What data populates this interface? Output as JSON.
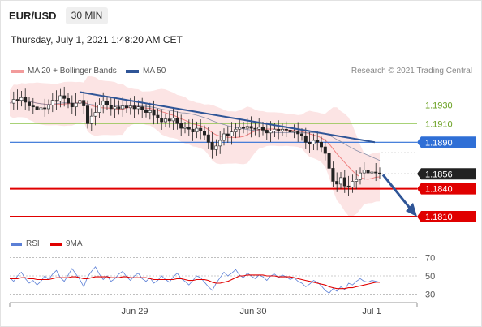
{
  "header": {
    "symbol": "EUR/USD",
    "timeframe": "30 MIN",
    "datetime": "Thursday, July 1, 2021 1:48:20 AM CET"
  },
  "legend": {
    "ma20_label": "MA 20 + Bollinger Bands",
    "ma50_label": "MA 50",
    "credit": "Research © 2021 Trading Central",
    "rsi_label": "RSI",
    "rsi_ma_label": "9MA"
  },
  "colors": {
    "ma20": "#f08080",
    "ma50": "#2f5597",
    "resistance": "#8bc34a",
    "pivot": "#2f6fd6",
    "support": "#e00000",
    "price_tag": "#222222",
    "trend_arrow": "#2f5597",
    "rsi": "#5b7fd6",
    "rsi_ma": "#e00000"
  },
  "chart_data": [
    {
      "type": "candlestick",
      "title": "EUR/USD 30 MIN",
      "x_labels": [
        "Jun 29",
        "Jun 30",
        "Jul 1"
      ],
      "ylim": [
        1.179,
        1.196
      ],
      "price_path": [
        1.1932,
        1.1936,
        1.1935,
        1.1938,
        1.1933,
        1.1929,
        1.1928,
        1.1925,
        1.1927,
        1.1926,
        1.193,
        1.1935,
        1.1934,
        1.194,
        1.1937,
        1.1932,
        1.1928,
        1.1932,
        1.1935,
        1.1929,
        1.191,
        1.1918,
        1.1922,
        1.193,
        1.1934,
        1.193,
        1.1926,
        1.1928,
        1.1926,
        1.1929,
        1.1927,
        1.1929,
        1.1926,
        1.1928,
        1.1925,
        1.1922,
        1.1924,
        1.1919,
        1.1916,
        1.1912,
        1.1915,
        1.1913,
        1.1916,
        1.191,
        1.1905,
        1.1906,
        1.1904,
        1.1901,
        1.1905,
        1.1902,
        1.1898,
        1.189,
        1.1882,
        1.1886,
        1.1892,
        1.1899,
        1.1897,
        1.1901,
        1.1904,
        1.1906,
        1.1905,
        1.1907,
        1.1905,
        1.1904,
        1.1906,
        1.1903,
        1.19,
        1.1902,
        1.1904,
        1.1902,
        1.1904,
        1.1903,
        1.1901,
        1.1902,
        1.1899,
        1.1897,
        1.189,
        1.1888,
        1.1892,
        1.189,
        1.1885,
        1.1878,
        1.1862,
        1.1848,
        1.1845,
        1.1852,
        1.1843,
        1.1842,
        1.1848,
        1.185,
        1.1857,
        1.186,
        1.1857,
        1.1858,
        1.1857,
        1.1856
      ],
      "levels": [
        {
          "value": 1.193,
          "label": "1.1930",
          "kind": "resistance"
        },
        {
          "value": 1.191,
          "label": "1.1910",
          "kind": "resistance"
        },
        {
          "value": 1.189,
          "label": "1.1890",
          "kind": "pivot"
        },
        {
          "value": 1.1856,
          "label": "1.1856",
          "kind": "last"
        },
        {
          "value": 1.184,
          "label": "1.1840",
          "kind": "support"
        },
        {
          "value": 1.181,
          "label": "1.1810",
          "kind": "support"
        }
      ]
    },
    {
      "type": "line",
      "title": "RSI",
      "ylim": [
        25,
        75
      ],
      "y_ticks": [
        70,
        50,
        30
      ],
      "series": [
        {
          "name": "RSI",
          "values": [
            48,
            44,
            50,
            54,
            47,
            42,
            45,
            40,
            44,
            50,
            46,
            52,
            56,
            48,
            44,
            51,
            58,
            52,
            46,
            38,
            49,
            55,
            60,
            52,
            46,
            50,
            44,
            47,
            52,
            55,
            49,
            45,
            50,
            53,
            47,
            44,
            48,
            42,
            45,
            50,
            46,
            43,
            49,
            53,
            47,
            44,
            40,
            45,
            50,
            48,
            43,
            38,
            34,
            42,
            48,
            54,
            50,
            53,
            57,
            51,
            48,
            53,
            50,
            47,
            51,
            49,
            45,
            50,
            52,
            48,
            51,
            49,
            46,
            48,
            44,
            42,
            38,
            41,
            45,
            43,
            39,
            34,
            31,
            36,
            33,
            38,
            35,
            42,
            40,
            44,
            47,
            44,
            43,
            45,
            44,
            43
          ]
        },
        {
          "name": "9MA",
          "values": [
            47,
            47,
            47,
            48,
            48,
            47,
            47,
            46,
            46,
            46,
            46,
            47,
            48,
            48,
            48,
            48,
            49,
            49,
            48,
            47,
            47,
            48,
            49,
            49,
            49,
            49,
            48,
            48,
            48,
            49,
            49,
            48,
            48,
            48,
            48,
            48,
            47,
            46,
            46,
            46,
            46,
            46,
            46,
            47,
            47,
            46,
            45,
            45,
            46,
            46,
            46,
            45,
            43,
            42,
            42,
            43,
            44,
            46,
            48,
            50,
            50,
            51,
            51,
            51,
            51,
            51,
            50,
            50,
            50,
            49,
            49,
            49,
            49,
            48,
            47,
            46,
            45,
            44,
            43,
            42,
            41,
            40,
            38,
            37,
            36,
            36,
            36,
            37,
            37,
            38,
            39,
            40,
            41,
            42,
            43,
            43
          ]
        }
      ]
    }
  ]
}
